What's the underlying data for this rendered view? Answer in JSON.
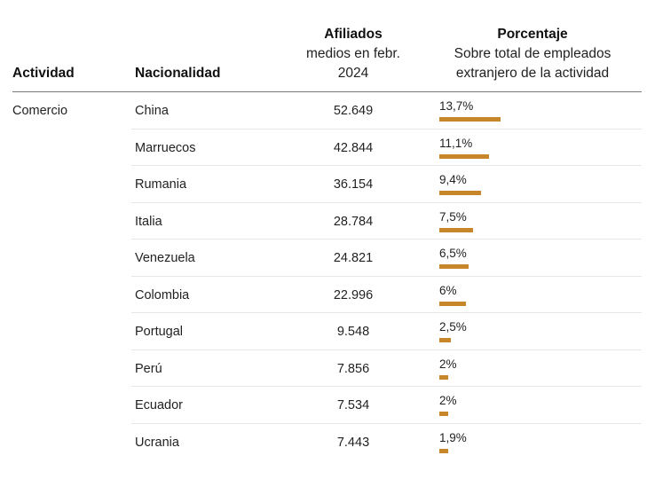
{
  "header": {
    "actividad": "Actividad",
    "nacionalidad": "Nacionalidad",
    "afiliados_title": "Afiliados",
    "afiliados_sub1": "medios en febr.",
    "afiliados_sub2": "2024",
    "porcentaje_title": "Porcentaje",
    "porcentaje_sub1": "Sobre total de empleados",
    "porcentaje_sub2": "extranjero de la actividad"
  },
  "colors": {
    "bar": "#c8862b"
  },
  "chart_data": {
    "type": "table",
    "columns": [
      "Actividad",
      "Nacionalidad",
      "Afiliados medios en febr. 2024",
      "Porcentaje Sobre total de empleados extranjero de la actividad"
    ],
    "rows": [
      {
        "actividad": "Comercio",
        "nacionalidad": "China",
        "afiliados": "52.649",
        "porcentaje": "13,7%",
        "value": 13.7
      },
      {
        "actividad": "",
        "nacionalidad": "Marruecos",
        "afiliados": "42.844",
        "porcentaje": "11,1%",
        "value": 11.1
      },
      {
        "actividad": "",
        "nacionalidad": "Rumania",
        "afiliados": "36.154",
        "porcentaje": "9,4%",
        "value": 9.4
      },
      {
        "actividad": "",
        "nacionalidad": "Italia",
        "afiliados": "28.784",
        "porcentaje": "7,5%",
        "value": 7.5
      },
      {
        "actividad": "",
        "nacionalidad": "Venezuela",
        "afiliados": "24.821",
        "porcentaje": "6,5%",
        "value": 6.5
      },
      {
        "actividad": "",
        "nacionalidad": "Colombia",
        "afiliados": "22.996",
        "porcentaje": "6%",
        "value": 6.0
      },
      {
        "actividad": "",
        "nacionalidad": "Portugal",
        "afiliados": "9.548",
        "porcentaje": "2,5%",
        "value": 2.5
      },
      {
        "actividad": "",
        "nacionalidad": "Perú",
        "afiliados": "7.856",
        "porcentaje": "2%",
        "value": 2.0
      },
      {
        "actividad": "",
        "nacionalidad": "Ecuador",
        "afiliados": "7.534",
        "porcentaje": "2%",
        "value": 2.0
      },
      {
        "actividad": "",
        "nacionalidad": "Ucrania",
        "afiliados": "7.443",
        "porcentaje": "1,9%",
        "value": 1.9
      }
    ]
  }
}
